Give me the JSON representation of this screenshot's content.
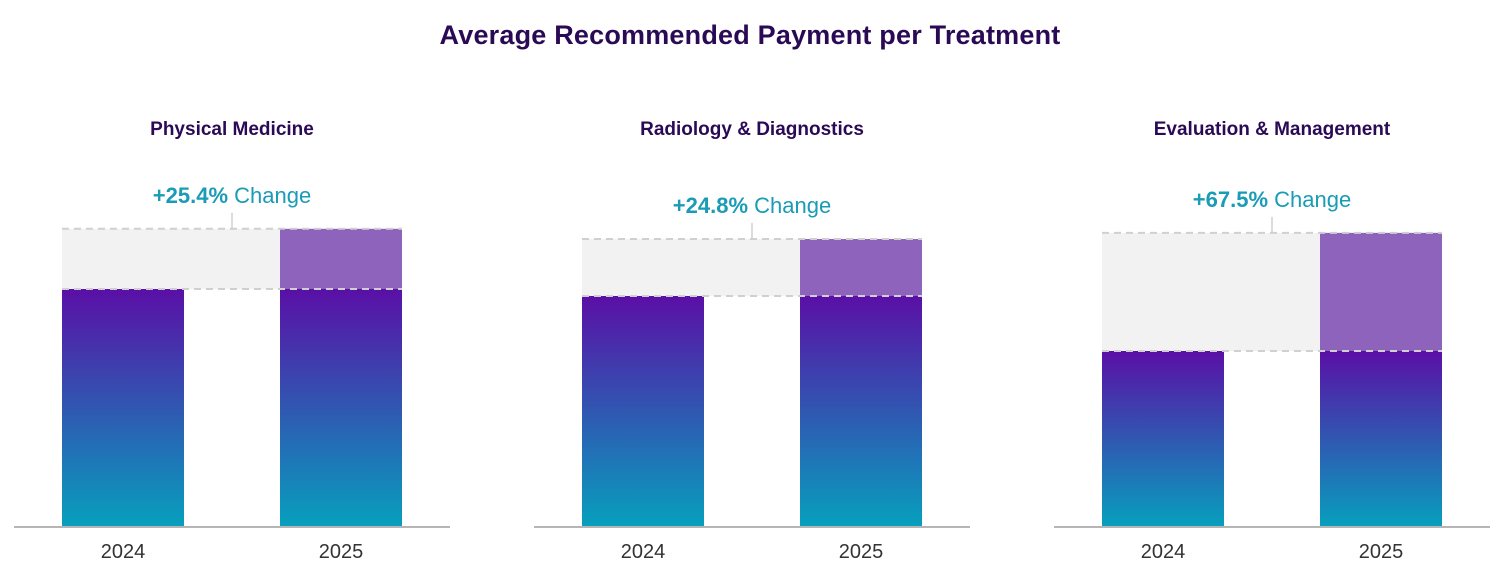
{
  "title": "Average Recommended Payment per Treatment",
  "colors": {
    "title": "#2a0a55",
    "panel_title": "#2a0a55",
    "change": "#1a9bb6",
    "bar_top": "#5a0fa6",
    "bar_bottom": "#079fbd",
    "increase_fill": "#8d63bb",
    "gap_fill": "#f2f2f2",
    "dash": "#d0d0d0",
    "axis": "#b5b5b5",
    "tick_label": "#333333"
  },
  "chart_data": [
    {
      "type": "bar",
      "title": "Physical Medicine",
      "categories": [
        "2024",
        "2025"
      ],
      "values": [
        100,
        125.4
      ],
      "annotation": {
        "value": "+25.4%",
        "suffix": " Change"
      },
      "ylim": [
        0,
        130
      ]
    },
    {
      "type": "bar",
      "title": "Radiology & Diagnostics",
      "categories": [
        "2024",
        "2025"
      ],
      "values": [
        100,
        124.8
      ],
      "annotation": {
        "value": "+24.8%",
        "suffix": " Change"
      },
      "ylim": [
        0,
        130
      ]
    },
    {
      "type": "bar",
      "title": "Evaluation & Management",
      "categories": [
        "2024",
        "2025"
      ],
      "values": [
        100,
        167.5
      ],
      "annotation": {
        "value": "+67.5%",
        "suffix": " Change"
      },
      "ylim": [
        0,
        180
      ]
    }
  ]
}
